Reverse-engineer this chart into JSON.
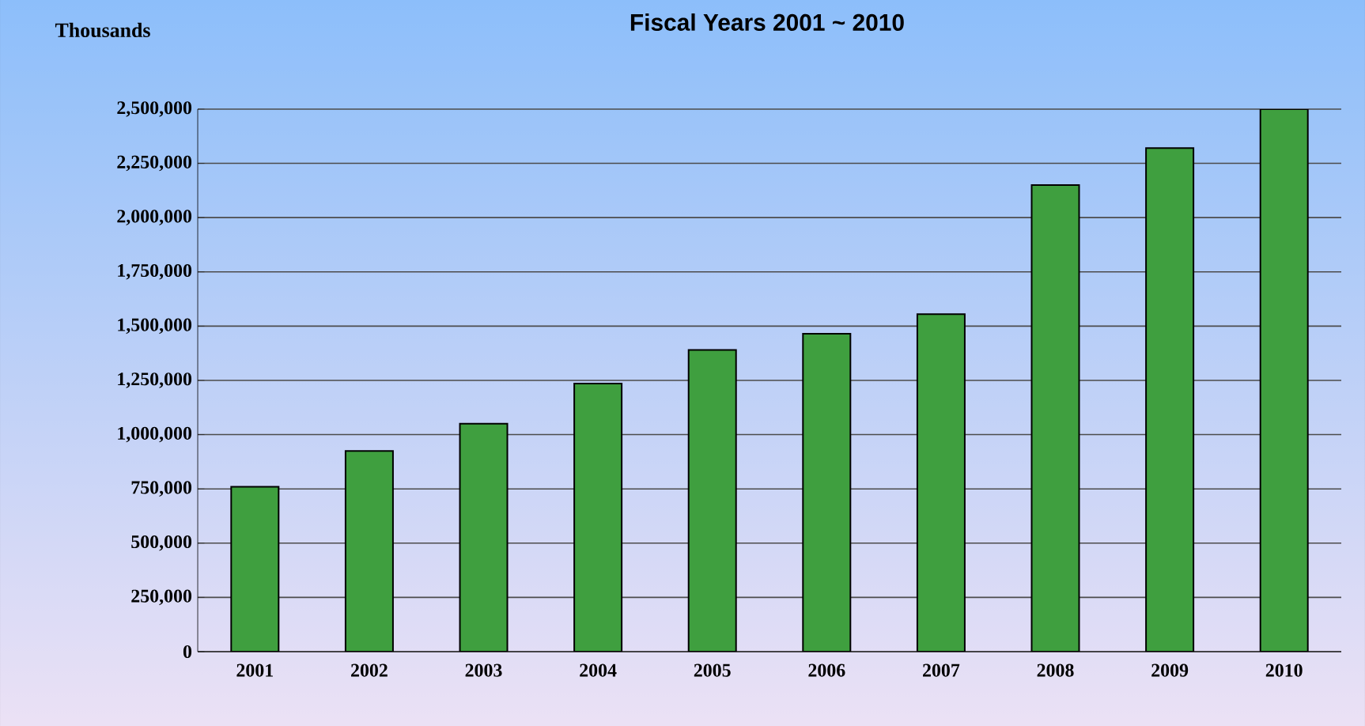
{
  "chart_data": {
    "type": "bar",
    "title": "Fiscal Years 2001 ~ 2010",
    "ylabel": "Thousands",
    "categories": [
      "2001",
      "2002",
      "2003",
      "2004",
      "2005",
      "2006",
      "2007",
      "2008",
      "2009",
      "2010"
    ],
    "values": [
      760000,
      925000,
      1050000,
      1235000,
      1390000,
      1465000,
      1555000,
      2150000,
      2320000,
      2500000
    ],
    "color": "#3f9f3f",
    "ylim": [
      0,
      2500000
    ],
    "yticks": [
      {
        "value": 0,
        "label": "0"
      },
      {
        "value": 250000,
        "label": "250,000"
      },
      {
        "value": 500000,
        "label": "500,000"
      },
      {
        "value": 750000,
        "label": "750,000"
      },
      {
        "value": 1000000,
        "label": "1,000,000"
      },
      {
        "value": 1250000,
        "label": "1,250,000"
      },
      {
        "value": 1500000,
        "label": "1,500,000"
      },
      {
        "value": 1750000,
        "label": "1,750,000"
      },
      {
        "value": 2000000,
        "label": "2,000,000"
      },
      {
        "value": 2250000,
        "label": "2,250,000"
      },
      {
        "value": 2500000,
        "label": "2,500,000"
      }
    ],
    "grid": "y"
  }
}
